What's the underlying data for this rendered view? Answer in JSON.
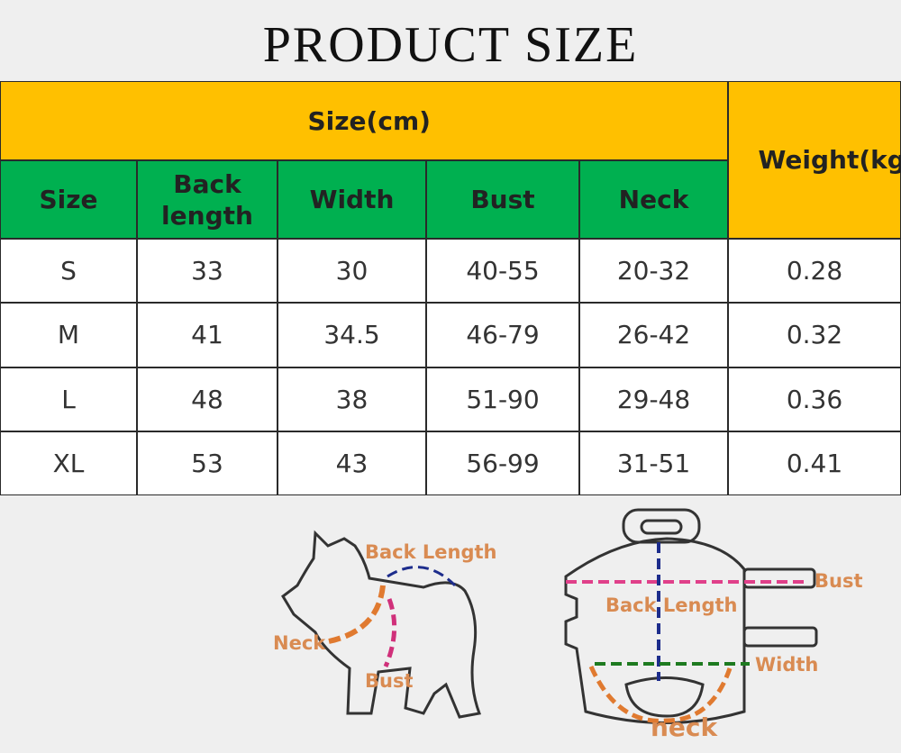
{
  "header": {
    "title": "PRODUCT SIZE"
  },
  "table": {
    "group_header": "Size(cm)",
    "weight_header": "Weight(kg)",
    "columns": [
      "Size",
      "Back length",
      "Width",
      "Bust",
      "Neck"
    ],
    "rows": [
      [
        "S",
        "33",
        "30",
        "40-55",
        "20-32",
        "0.28"
      ],
      [
        "M",
        "41",
        "34.5",
        "46-79",
        "26-42",
        "0.32"
      ],
      [
        "L",
        "48",
        "38",
        "51-90",
        "29-48",
        "0.36"
      ],
      [
        "XL",
        "53",
        "43",
        "56-99",
        "31-51",
        "0.41"
      ]
    ]
  },
  "diagrams": {
    "dog": {
      "labels": [
        "Back Length",
        "Neck",
        "Bust"
      ]
    },
    "harness": {
      "labels": [
        "Bust",
        "Back Length",
        "Width",
        "neck"
      ]
    }
  }
}
